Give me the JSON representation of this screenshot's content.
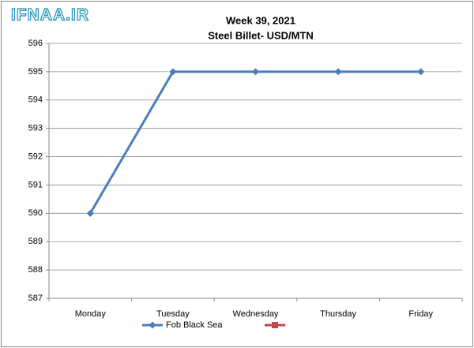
{
  "chart_data": {
    "type": "line",
    "watermark": "IFNAA.IR",
    "title": "Week 39, 2021",
    "subtitle": "Steel Billet- USD/MTN",
    "categories": [
      "Monday",
      "Tuesday",
      "Wednesday",
      "Thursday",
      "Friday"
    ],
    "series": [
      {
        "name": "Fob Black Sea",
        "color": "#4a7ebb",
        "values": [
          590,
          595,
          595,
          595,
          595
        ]
      },
      {
        "color": "#be4b48",
        "values": [
          null,
          null,
          null,
          null,
          null
        ]
      }
    ],
    "ylim": [
      587,
      596
    ],
    "yticks": [
      587,
      588,
      589,
      590,
      591,
      592,
      593,
      594,
      595,
      596
    ],
    "grid": true
  }
}
